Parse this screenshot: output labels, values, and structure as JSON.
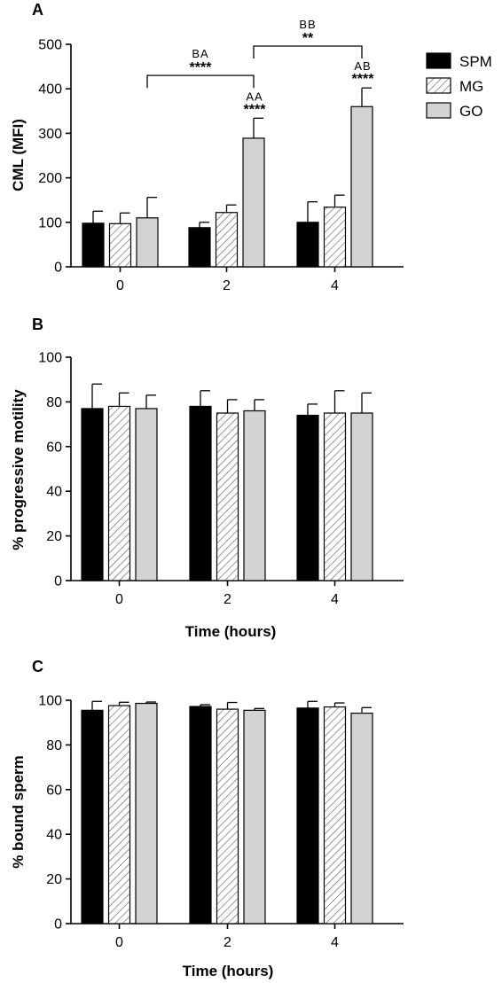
{
  "chart_data": [
    {
      "type": "bar",
      "panel": "A",
      "categories": [
        "0",
        "2",
        "4"
      ],
      "series": [
        {
          "name": "SPM",
          "values": [
            98,
            88,
            100
          ],
          "errors": [
            27,
            12,
            46
          ]
        },
        {
          "name": "MG",
          "values": [
            97,
            122,
            134
          ],
          "errors": [
            24,
            17,
            27
          ]
        },
        {
          "name": "GO",
          "values": [
            110,
            289,
            360
          ],
          "errors": [
            46,
            45,
            42
          ]
        }
      ],
      "xlabel": "",
      "ylabel": "CML (MFI)",
      "ylim": [
        0,
        500
      ],
      "yticks": [
        "0",
        "100",
        "200",
        "300",
        "400",
        "500"
      ],
      "legend": {
        "placement": "top-right",
        "entries": [
          "SPM",
          "MG",
          "GO"
        ]
      },
      "annotations": [
        {
          "category": "2",
          "series": "GO",
          "letters": "AA",
          "stars": "****"
        },
        {
          "category": "4",
          "series": "GO",
          "letters": "AB",
          "stars": "****"
        }
      ],
      "brackets": [
        {
          "from_category": "0",
          "to_category": "2",
          "series": "GO",
          "y": 430,
          "letters": "BA",
          "stars": "****"
        },
        {
          "from_category": "2",
          "to_category": "4",
          "series": "GO",
          "y": 496,
          "letters": "BB",
          "stars": "**"
        }
      ]
    },
    {
      "type": "bar",
      "panel": "B",
      "categories": [
        "0",
        "2",
        "4"
      ],
      "series": [
        {
          "name": "SPM",
          "values": [
            77,
            78,
            74
          ],
          "errors": [
            11,
            7,
            5
          ]
        },
        {
          "name": "MG",
          "values": [
            78,
            75,
            75
          ],
          "errors": [
            6,
            6,
            10
          ]
        },
        {
          "name": "GO",
          "values": [
            77,
            76,
            75
          ],
          "errors": [
            6,
            5,
            9
          ]
        }
      ],
      "xlabel": "Time (hours)",
      "ylabel": "% progressive motility",
      "ylim": [
        0,
        100
      ],
      "yticks": [
        "0",
        "20",
        "40",
        "60",
        "80",
        "100"
      ]
    },
    {
      "type": "bar",
      "panel": "C",
      "categories": [
        "0",
        "2",
        "4"
      ],
      "series": [
        {
          "name": "SPM",
          "values": [
            95.5,
            97.2,
            96.5
          ],
          "errors": [
            4,
            0.8,
            3
          ]
        },
        {
          "name": "MG",
          "values": [
            97.6,
            96,
            97
          ],
          "errors": [
            1.5,
            3,
            1.8
          ]
        },
        {
          "name": "GO",
          "values": [
            98.6,
            95.5,
            94.2
          ],
          "errors": [
            0.6,
            0.8,
            2.5
          ]
        }
      ],
      "xlabel": "Time (hours)",
      "ylabel": "% bound sperm",
      "ylim": [
        0,
        100
      ],
      "yticks": [
        "0",
        "20",
        "40",
        "60",
        "80",
        "100"
      ]
    }
  ],
  "colors": {
    "SPM": "#000000",
    "MG": "hatched",
    "GO": "#d3d3d3"
  }
}
